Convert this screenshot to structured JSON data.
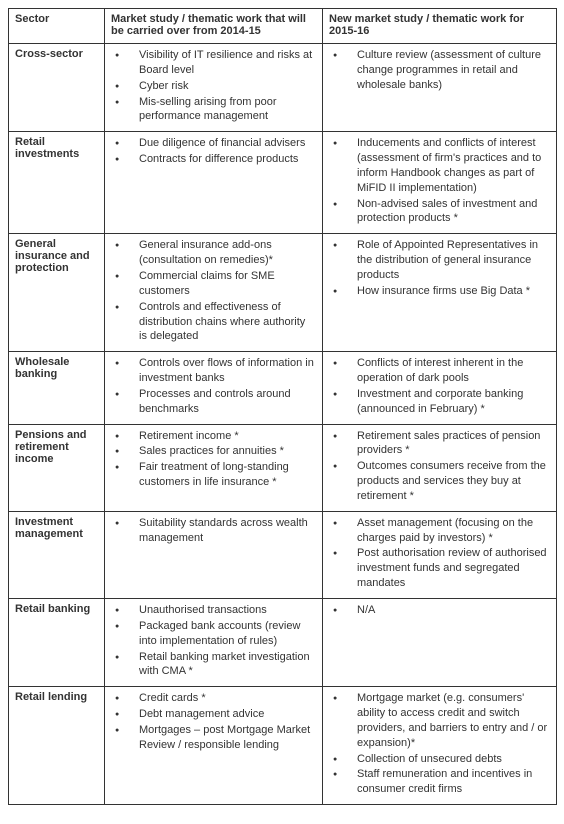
{
  "columns": [
    "Sector",
    "Market study / thematic work that will be carried over from 2014-15",
    "New market study / thematic work for 2015-16"
  ],
  "rows": [
    {
      "sector": "Cross-sector",
      "carried_over": [
        "Visibility of IT resilience and risks at Board level",
        "Cyber risk",
        "Mis-selling arising from poor performance management"
      ],
      "new_work": [
        "Culture review (assessment of culture change programmes in retail and wholesale banks)"
      ]
    },
    {
      "sector": "Retail investments",
      "carried_over": [
        "Due diligence of financial advisers",
        "Contracts for difference products"
      ],
      "new_work": [
        "Inducements and conflicts of interest (assessment of firm's practices and to inform Handbook changes as part of MiFID II implementation)",
        "Non-advised sales of investment and protection products *"
      ]
    },
    {
      "sector": "General insurance and protection",
      "carried_over": [
        "General insurance add-ons (consultation on remedies)*",
        "Commercial claims for SME customers",
        "Controls and effectiveness of distribution chains where authority is delegated"
      ],
      "new_work": [
        "Role of Appointed Representatives in the distribution of general insurance products",
        "How insurance firms use Big Data *"
      ]
    },
    {
      "sector": "Wholesale banking",
      "carried_over": [
        "Controls over flows of information in investment banks",
        "Processes and controls around benchmarks"
      ],
      "new_work": [
        "Conflicts of interest inherent in the operation of dark pools",
        "Investment and corporate banking (announced in February) *"
      ]
    },
    {
      "sector": "Pensions and retirement income",
      "carried_over": [
        "Retirement income *",
        "Sales practices for annuities *",
        "Fair treatment of long-standing customers in life insurance *"
      ],
      "new_work": [
        "Retirement sales practices of pension providers *",
        "Outcomes consumers receive from the products and services they buy at retirement *"
      ]
    },
    {
      "sector": "Investment management",
      "carried_over": [
        "Suitability standards across wealth management"
      ],
      "new_work": [
        "Asset management (focusing on the charges paid by investors) *",
        "Post authorisation review of authorised investment funds and segregated mandates"
      ]
    },
    {
      "sector": "Retail banking",
      "carried_over": [
        "Unauthorised transactions",
        "Packaged bank accounts (review into implementation of rules)",
        "Retail banking market investigation with CMA *"
      ],
      "new_work": [
        "N/A"
      ]
    },
    {
      "sector": "Retail lending",
      "carried_over": [
        "Credit cards *",
        "Debt management advice",
        "Mortgages – post Mortgage Market Review / responsible lending"
      ],
      "new_work": [
        "Mortgage market (e.g. consumers' ability to access credit and switch providers, and barriers to entry and / or expansion)*",
        "Collection of unsecured debts",
        "Staff remuneration and incentives in consumer credit firms"
      ]
    }
  ]
}
